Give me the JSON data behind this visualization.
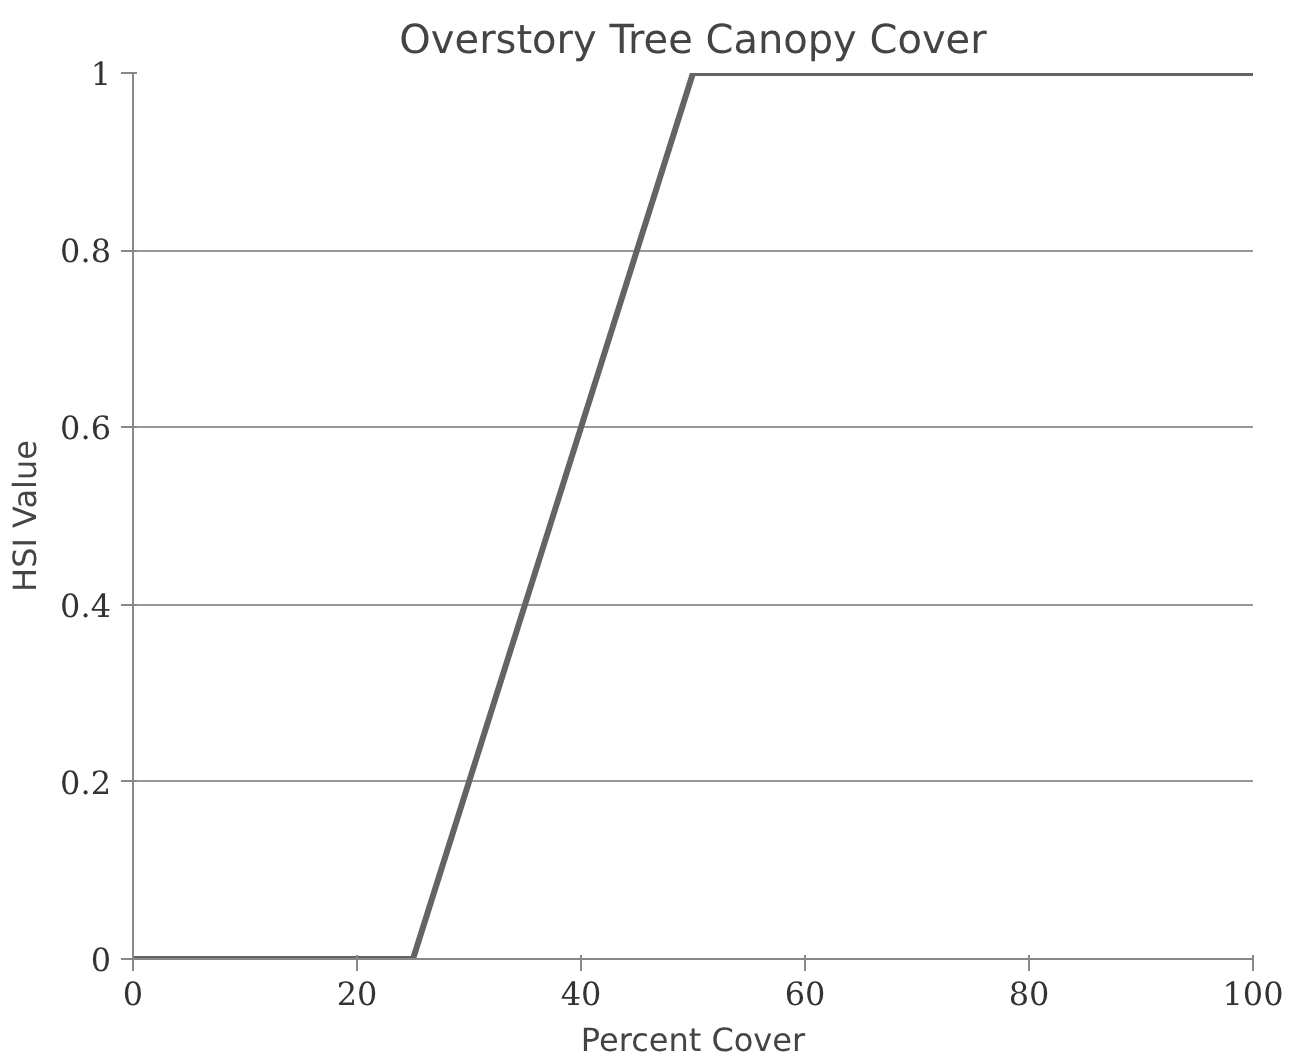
{
  "chart_data": {
    "type": "line",
    "title": "Overstory Tree Canopy Cover",
    "xlabel": "Percent Cover",
    "ylabel": "HSI Value",
    "x": [
      0,
      25,
      50,
      100
    ],
    "series": [
      {
        "color": "#646464",
        "values": [
          0,
          0,
          1,
          1
        ]
      }
    ],
    "xlim": [
      0,
      100
    ],
    "xticks": [
      0,
      20,
      40,
      60,
      80,
      100
    ],
    "ylim": [
      0,
      1
    ],
    "yticks": [
      0,
      0.2,
      0.4,
      0.6,
      0.8,
      1
    ],
    "grid": "y",
    "marker": "none",
    "line_style": "solid"
  }
}
